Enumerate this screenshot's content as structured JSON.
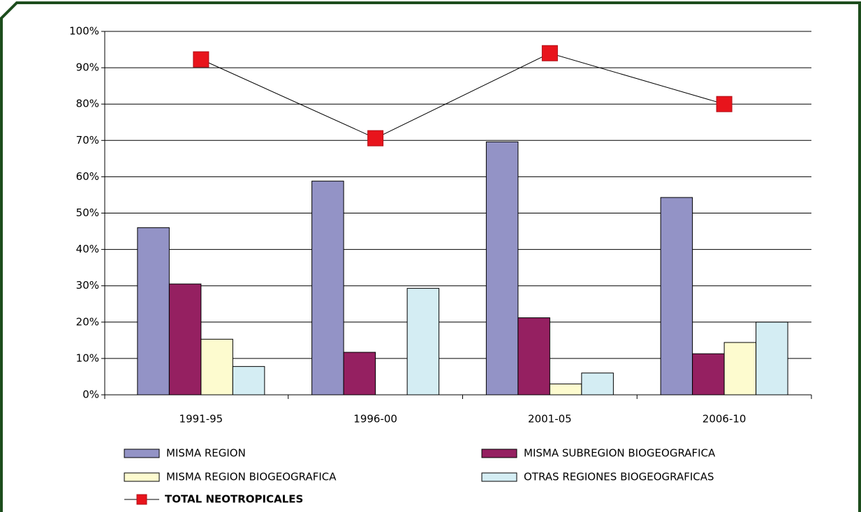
{
  "chart_data": {
    "type": "bar",
    "categories": [
      "1991-95",
      "1996-00",
      "2001-05",
      "2006-10"
    ],
    "series": [
      {
        "name": "MISMA REGION",
        "color": "#9393c6",
        "values": [
          46,
          58.8,
          69.6,
          54.3
        ]
      },
      {
        "name": "MISMA SUBREGION BIOGEOGRAFICA",
        "color": "#952061",
        "values": [
          30.5,
          11.7,
          21.2,
          11.3
        ]
      },
      {
        "name": "MISMA REGION BIOGEOGRAFICA",
        "color": "#fdfbcf",
        "values": [
          15.3,
          0,
          3,
          14.4
        ]
      },
      {
        "name": "OTRAS REGIONES BIOGEOGRAFICAS",
        "color": "#d4edf3",
        "values": [
          7.8,
          29.3,
          6,
          20
        ]
      },
      {
        "name": "TOTAL NEOTROPICALES",
        "type": "line",
        "color": "#e8141c",
        "values": [
          92.3,
          70.6,
          94,
          80
        ]
      }
    ],
    "ylim": [
      0,
      100
    ],
    "yticks": [
      {
        "value": 0,
        "label": "0%"
      },
      {
        "value": 10,
        "label": "10%"
      },
      {
        "value": 20,
        "label": "20%"
      },
      {
        "value": 30,
        "label": "30%"
      },
      {
        "value": 40,
        "label": "40%"
      },
      {
        "value": 50,
        "label": "50%"
      },
      {
        "value": 60,
        "label": "60%"
      },
      {
        "value": 70,
        "label": "70%"
      },
      {
        "value": 80,
        "label": "80%"
      },
      {
        "value": 90,
        "label": "90%"
      },
      {
        "value": 100,
        "label": "100%"
      }
    ],
    "grid": true
  }
}
